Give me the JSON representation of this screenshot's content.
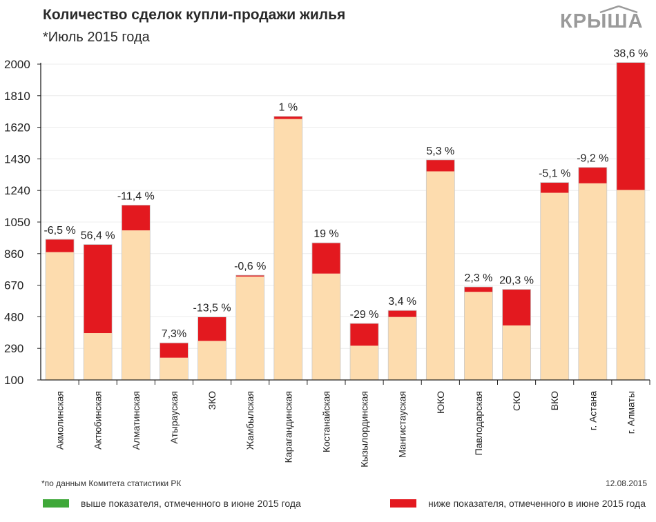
{
  "header": {
    "title": "Количество сделок купли-продажи жилья",
    "subtitle": "*Июль 2015 года"
  },
  "logo": {
    "text": "КРЫША"
  },
  "colors": {
    "base": "#fddcae",
    "above": "#3fa839",
    "below": "#e3191f",
    "axis": "#222222"
  },
  "chart_data": {
    "type": "bar",
    "title": "Количество сделок купли-продажи жилья",
    "subtitle": "*Июль 2015 года",
    "ylim": [
      100,
      2000
    ],
    "yticks": [
      100,
      290,
      480,
      670,
      860,
      1050,
      1240,
      1430,
      1620,
      1810,
      2000
    ],
    "ytick_labels": [
      "100",
      "290",
      "480",
      "670",
      "860",
      "1050",
      "1240",
      "1430",
      "1620",
      "1810",
      "2000"
    ],
    "categories": [
      "Акмолинская",
      "Актюбинская",
      "Алматинская",
      "Атырауская",
      "ЗКО",
      "Жамбылская",
      "Карагандинская",
      "Костанайская",
      "Кызылординская",
      "Мангистауская",
      "ЮКО",
      "Павлодарская",
      "СКО",
      "ВКО",
      "г. Астана",
      "г. Алматы"
    ],
    "series": [
      {
        "name": "Июль 2015",
        "values": [
          869,
          382,
          1000,
          234,
          335,
          722,
          1670,
          740,
          306,
          479,
          1355,
          630,
          428,
          1226,
          1283,
          1243
        ]
      },
      {
        "name": "Июнь 2015",
        "values": [
          946,
          915,
          1152,
          323,
          479,
          730,
          1686,
          925,
          440,
          518,
          1424,
          660,
          645,
          1288,
          1379,
          2010
        ]
      }
    ],
    "changes": [
      "-6,5 %",
      "56,4 %",
      "-11,4 %",
      "7,3%",
      "-13,5 %",
      "-0,6 %",
      "1 %",
      "19 %",
      "-29 %",
      "3,4 %",
      "5,3 %",
      "2,3 %",
      "20,3 %",
      "-5,1 %",
      "-9,2 %",
      "38,6 %"
    ],
    "legend": [
      {
        "label": "выше показателя, отмеченного в июне 2015 года",
        "color": "#3fa839"
      },
      {
        "label": "ниже показателя, отмеченного в июне 2015 года",
        "color": "#e3191f"
      }
    ],
    "footnote": "*по данным Комитета статистики РК",
    "date": "12.08.2015"
  }
}
